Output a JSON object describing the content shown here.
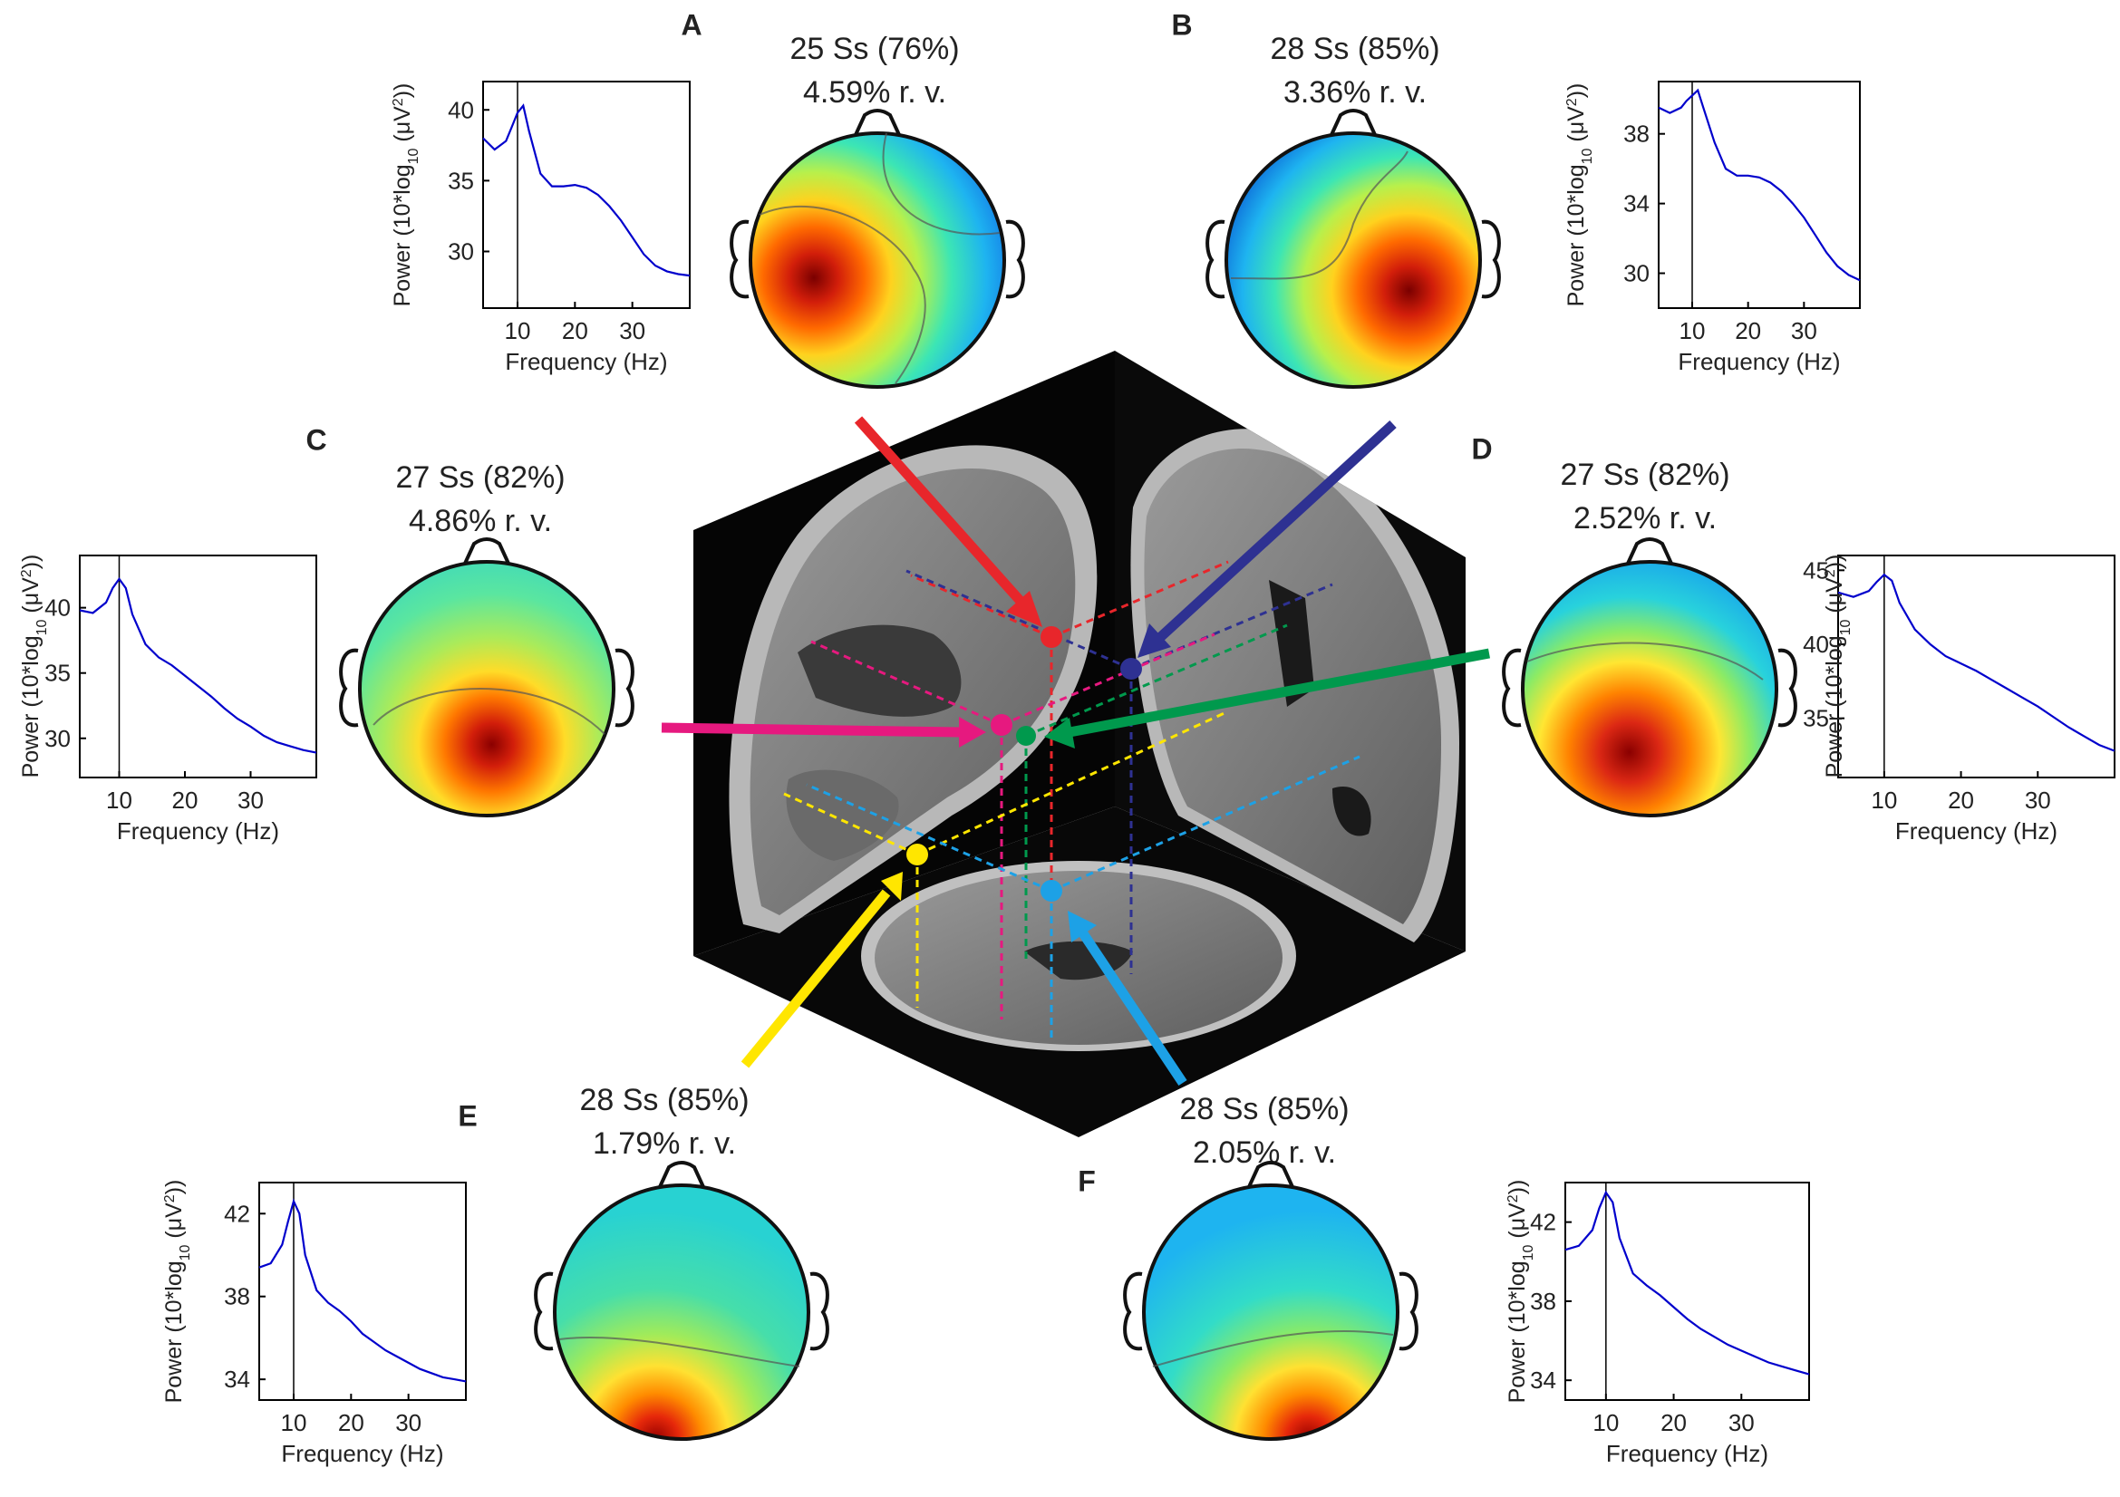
{
  "colors": {
    "trace": "#0000cc",
    "frame": "#000000",
    "arrowA": "#e8262b",
    "arrowB": "#2e3192",
    "arrowC": "#e6197f",
    "arrowD": "#00994d",
    "arrowE": "#ffe600",
    "arrowF": "#1da1e6"
  },
  "shared_axes": {
    "xlabel": "Frequency (Hz)",
    "ylabel_prefix": "Power (10*log",
    "ylabel_sub": "10",
    "ylabel_mid": " (μV",
    "ylabel_sup": "2",
    "ylabel_end": "))",
    "xticks": [
      "10",
      "20",
      "30"
    ]
  },
  "panels": [
    {
      "letter": "A",
      "subjects": "25 Ss (76%)",
      "rv": "4.59% r. v.",
      "yticks": [
        "40",
        "35",
        "30"
      ],
      "arrow_color": "#e8262b"
    },
    {
      "letter": "B",
      "subjects": "28 Ss (85%)",
      "rv": "3.36% r. v.",
      "yticks": [
        "38",
        "34",
        "30"
      ],
      "arrow_color": "#2e3192"
    },
    {
      "letter": "C",
      "subjects": "27 Ss (82%)",
      "rv": "4.86% r. v.",
      "yticks": [
        "40",
        "35",
        "30"
      ],
      "arrow_color": "#e6197f"
    },
    {
      "letter": "D",
      "subjects": "27 Ss (82%)",
      "rv": "2.52% r. v.",
      "yticks": [
        "45",
        "40",
        "35"
      ],
      "arrow_color": "#00994d"
    },
    {
      "letter": "E",
      "subjects": "28 Ss (85%)",
      "rv": "1.79% r. v.",
      "yticks": [
        "42",
        "38",
        "34"
      ],
      "arrow_color": "#ffe600"
    },
    {
      "letter": "F",
      "subjects": "28 Ss (85%)",
      "rv": "2.05% r. v.",
      "yticks": [
        "42",
        "38",
        "34"
      ],
      "arrow_color": "#1da1e6"
    }
  ],
  "chart_data": [
    {
      "type": "line",
      "panel": "A",
      "xlabel": "Frequency (Hz)",
      "ylabel": "Power (10*log10 (μV2))",
      "xlim": [
        4,
        40
      ],
      "ylim": [
        26,
        42
      ],
      "marker_x": 10,
      "x": [
        4,
        6,
        8,
        9,
        10,
        11,
        12,
        14,
        16,
        18,
        20,
        22,
        24,
        26,
        28,
        30,
        32,
        34,
        36,
        38,
        40
      ],
      "y": [
        38.0,
        37.2,
        37.8,
        38.8,
        39.8,
        40.3,
        38.5,
        35.5,
        34.6,
        34.6,
        34.7,
        34.5,
        34.0,
        33.2,
        32.2,
        31.0,
        29.8,
        29.0,
        28.6,
        28.4,
        28.3
      ]
    },
    {
      "type": "line",
      "panel": "B",
      "xlabel": "Frequency (Hz)",
      "ylabel": "Power (10*log10 (μV2))",
      "xlim": [
        4,
        40
      ],
      "ylim": [
        28,
        41
      ],
      "marker_x": 10,
      "x": [
        4,
        6,
        8,
        9,
        10,
        11,
        12,
        14,
        16,
        18,
        20,
        22,
        24,
        26,
        28,
        30,
        32,
        34,
        36,
        38,
        40
      ],
      "y": [
        39.5,
        39.2,
        39.5,
        39.9,
        40.2,
        40.5,
        39.5,
        37.5,
        36.0,
        35.6,
        35.6,
        35.5,
        35.2,
        34.7,
        34.0,
        33.2,
        32.2,
        31.2,
        30.4,
        29.9,
        29.6
      ]
    },
    {
      "type": "line",
      "panel": "C",
      "xlabel": "Frequency (Hz)",
      "ylabel": "Power (10*log10 (μV2))",
      "xlim": [
        4,
        40
      ],
      "ylim": [
        27,
        44
      ],
      "marker_x": 10,
      "x": [
        4,
        6,
        8,
        9,
        10,
        11,
        12,
        14,
        16,
        18,
        20,
        22,
        24,
        26,
        28,
        30,
        32,
        34,
        36,
        38,
        40
      ],
      "y": [
        39.8,
        39.6,
        40.4,
        41.5,
        42.2,
        41.5,
        39.5,
        37.2,
        36.2,
        35.6,
        34.8,
        34.0,
        33.2,
        32.3,
        31.5,
        30.9,
        30.2,
        29.7,
        29.4,
        29.1,
        28.9
      ]
    },
    {
      "type": "line",
      "panel": "D",
      "xlabel": "Frequency (Hz)",
      "ylabel": "Power (10*log10 (μV2))",
      "xlim": [
        4,
        40
      ],
      "ylim": [
        31,
        46
      ],
      "marker_x": 10,
      "x": [
        4,
        6,
        8,
        9,
        10,
        11,
        12,
        14,
        16,
        18,
        20,
        22,
        24,
        26,
        28,
        30,
        32,
        34,
        36,
        38,
        40
      ],
      "y": [
        43.5,
        43.2,
        43.6,
        44.2,
        44.7,
        44.3,
        42.8,
        41.0,
        40.0,
        39.2,
        38.7,
        38.2,
        37.6,
        37.0,
        36.4,
        35.8,
        35.1,
        34.4,
        33.8,
        33.2,
        32.8
      ]
    },
    {
      "type": "line",
      "panel": "E",
      "xlabel": "Frequency (Hz)",
      "ylabel": "Power (10*log10 (μV2))",
      "xlim": [
        4,
        40
      ],
      "ylim": [
        33,
        43.5
      ],
      "marker_x": 10,
      "x": [
        4,
        6,
        8,
        9,
        10,
        11,
        12,
        14,
        16,
        18,
        20,
        22,
        24,
        26,
        28,
        30,
        32,
        34,
        36,
        38,
        40
      ],
      "y": [
        39.4,
        39.6,
        40.5,
        41.6,
        42.6,
        42.0,
        40.0,
        38.3,
        37.7,
        37.3,
        36.8,
        36.2,
        35.8,
        35.4,
        35.1,
        34.8,
        34.5,
        34.3,
        34.1,
        34.0,
        33.9
      ]
    },
    {
      "type": "line",
      "panel": "F",
      "xlabel": "Frequency (Hz)",
      "ylabel": "Power (10*log10 (μV2))",
      "xlim": [
        4,
        40
      ],
      "ylim": [
        33,
        44
      ],
      "marker_x": 10,
      "x": [
        4,
        6,
        8,
        9,
        10,
        11,
        12,
        14,
        16,
        18,
        20,
        22,
        24,
        26,
        28,
        30,
        32,
        34,
        36,
        38,
        40
      ],
      "y": [
        40.6,
        40.8,
        41.6,
        42.7,
        43.5,
        43.0,
        41.2,
        39.4,
        38.8,
        38.3,
        37.7,
        37.1,
        36.6,
        36.2,
        35.8,
        35.5,
        35.2,
        34.9,
        34.7,
        34.5,
        34.3
      ]
    }
  ]
}
